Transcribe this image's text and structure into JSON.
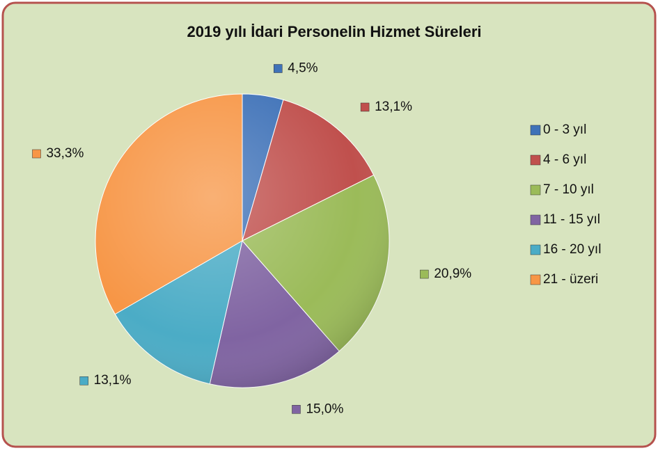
{
  "chart_data": {
    "type": "pie",
    "title": "2019 yılı İdari Personelin Hizmet Süreleri",
    "categories": [
      "0 - 3 yıl",
      "4 - 6 yıl",
      "7 - 10 yıl",
      "11 - 15 yıl",
      "16 - 20 yıl",
      "21 - üzeri"
    ],
    "values": [
      4.5,
      13.1,
      20.9,
      15.0,
      13.1,
      33.3
    ],
    "value_labels": [
      "4,5%",
      "13,1%",
      "20,9%",
      "15,0%",
      "13,1%",
      "33,3%"
    ],
    "colors": [
      "#3f72b8",
      "#c0504d",
      "#9bbb59",
      "#8064a2",
      "#4bacc6",
      "#f79646"
    ],
    "legend": "right"
  }
}
